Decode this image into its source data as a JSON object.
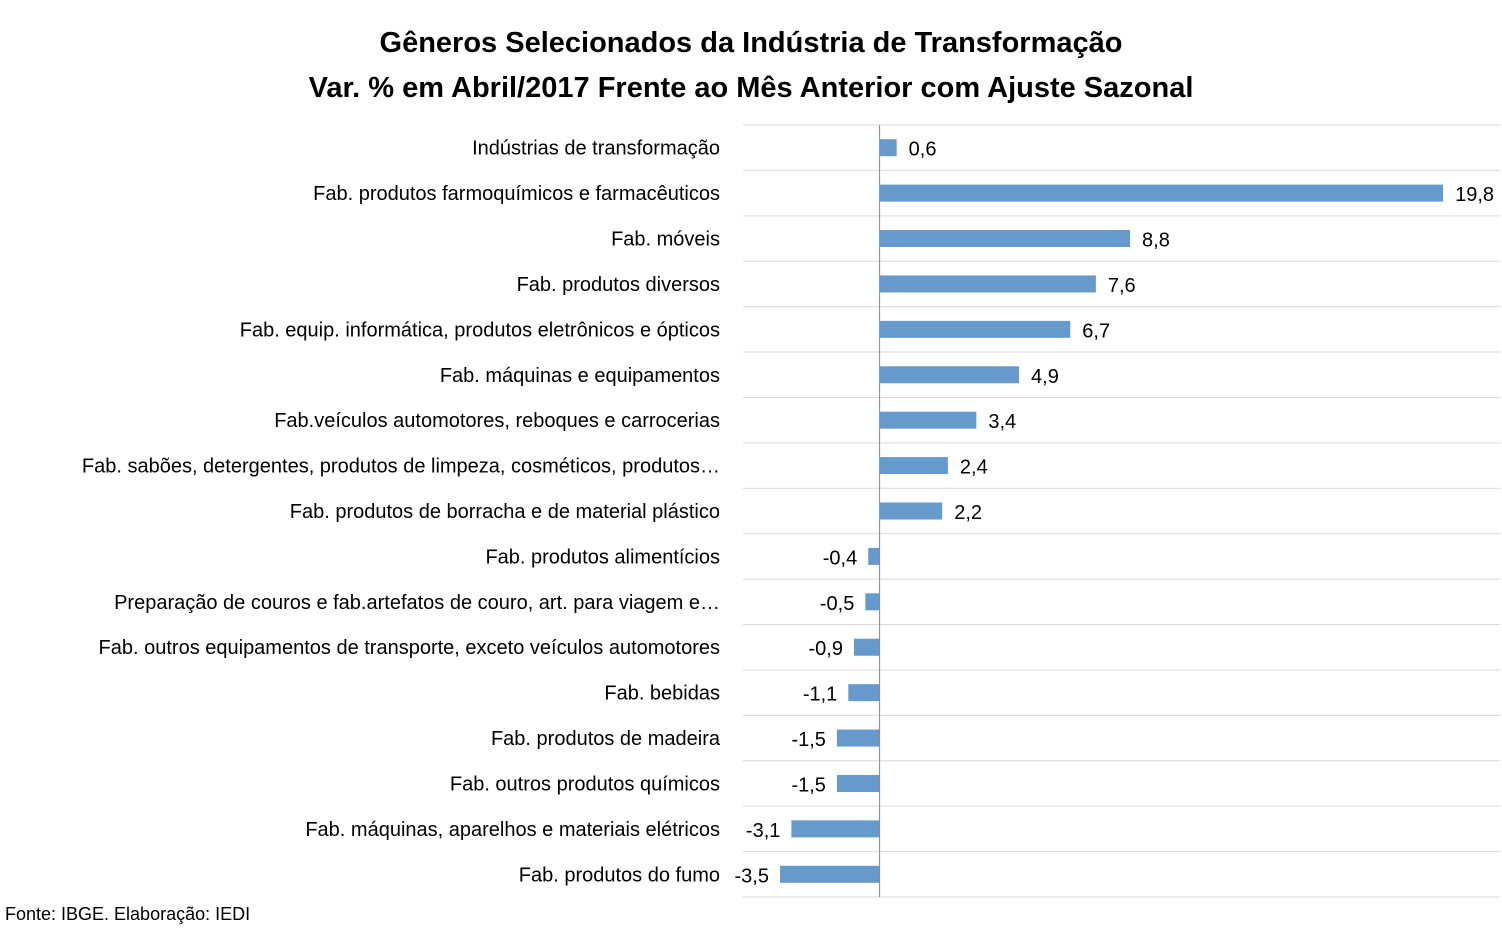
{
  "chart_data": {
    "type": "bar",
    "orientation": "horizontal",
    "title": "Gêneros Selecionados da Indústria de Transformação",
    "subtitle": "Var. % em Abril/2017 Frente ao Mês Anterior com Ajuste Sazonal",
    "categories": [
      "Indústrias de transformação",
      "Fab. produtos farmoquímicos e farmacêuticos",
      "Fab. móveis",
      "Fab. produtos diversos",
      "Fab. equip. informática, produtos eletrônicos e ópticos",
      "Fab. máquinas e equipamentos",
      "Fab.veículos automotores, reboques e carrocerias",
      "Fab. sabões, detergentes, produtos de limpeza, cosméticos, produtos…",
      "Fab. produtos de borracha e de material plástico",
      "Fab. produtos alimentícios",
      "Preparação de couros e fab.artefatos de couro, art. para viagem e…",
      "Fab. outros equipamentos de transporte, exceto veículos automotores",
      "Fab. bebidas",
      "Fab. produtos de madeira",
      "Fab. outros produtos químicos",
      "Fab. máquinas, aparelhos e materiais elétricos",
      "Fab. produtos do fumo"
    ],
    "values": [
      0.6,
      19.8,
      8.8,
      7.6,
      6.7,
      4.9,
      3.4,
      2.4,
      2.2,
      -0.4,
      -0.5,
      -0.9,
      -1.1,
      -1.5,
      -1.5,
      -3.1,
      -3.5
    ],
    "value_labels": [
      "0,6",
      "19,8",
      "8,8",
      "7,6",
      "6,7",
      "4,9",
      "3,4",
      "2,4",
      "2,2",
      "-0,4",
      "-0,5",
      "-0,9",
      "-1,1",
      "-1,5",
      "-1,5",
      "-3,1",
      "-3,5"
    ],
    "xlim": [
      -4.8,
      21.8
    ],
    "grid": true,
    "legend": false,
    "bar_color": "#6699cc",
    "grid_color": "#d9d9d9",
    "axis_color": "#868686"
  },
  "source_note": "Fonte: IBGE. Elaboração: IEDI"
}
